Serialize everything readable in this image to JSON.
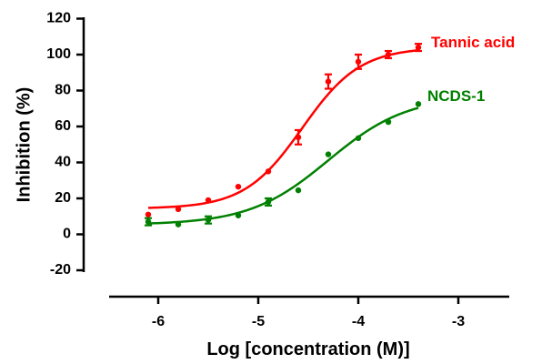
{
  "chart_data": {
    "type": "scatter",
    "xlabel": "Log [concentration (M)]",
    "ylabel": "Inhibition (%)",
    "xlim": [
      -6.5,
      -2.5
    ],
    "ylim": [
      -20,
      120
    ],
    "x_ticks": [
      -6,
      -5,
      -4,
      -3
    ],
    "y_ticks": [
      -20,
      0,
      20,
      40,
      60,
      80,
      100,
      120
    ],
    "grid": false,
    "legend": "inline-labels-right",
    "series": [
      {
        "name": "Tannic acid",
        "color": "#ff0000",
        "points": [
          {
            "x": -6.1,
            "y": 11
          },
          {
            "x": -5.8,
            "y": 14
          },
          {
            "x": -5.5,
            "y": 19
          },
          {
            "x": -5.2,
            "y": 26.5
          },
          {
            "x": -4.9,
            "y": 35
          },
          {
            "x": -4.6,
            "y": 54,
            "err": 4
          },
          {
            "x": -4.3,
            "y": 85,
            "err": 4
          },
          {
            "x": -4.0,
            "y": 96,
            "err": 4
          },
          {
            "x": -3.7,
            "y": 100,
            "err": 2
          },
          {
            "x": -3.4,
            "y": 104,
            "err": 2
          }
        ],
        "fit": {
          "bottom": 14.3,
          "top": 104,
          "logIC50": -4.56,
          "hill": 1.5
        }
      },
      {
        "name": "NCDS-1",
        "color": "#008000",
        "points": [
          {
            "x": -6.1,
            "y": 7,
            "err": 2
          },
          {
            "x": -5.8,
            "y": 5.5
          },
          {
            "x": -5.5,
            "y": 8,
            "err": 2
          },
          {
            "x": -5.2,
            "y": 10.5
          },
          {
            "x": -4.9,
            "y": 18,
            "err": 2
          },
          {
            "x": -4.6,
            "y": 24.5
          },
          {
            "x": -4.3,
            "y": 44.5
          },
          {
            "x": -4.0,
            "y": 53.5
          },
          {
            "x": -3.7,
            "y": 62.5
          },
          {
            "x": -3.4,
            "y": 72.5
          }
        ],
        "fit": {
          "bottom": 5.3,
          "top": 77,
          "logIC50": -4.3,
          "hill": 1.1
        }
      }
    ]
  }
}
